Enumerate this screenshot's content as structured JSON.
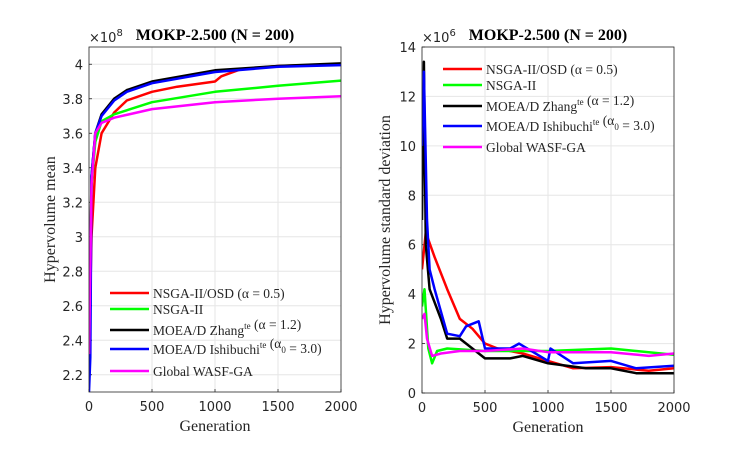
{
  "chart_data": [
    {
      "type": "line",
      "title": "MOKP-2.500 (N = 200)",
      "xlabel": "Generation",
      "ylabel": "Hypervolume mean",
      "y_multiplier": "×10^8",
      "xlim": [
        0,
        2000
      ],
      "ylim": [
        2.1,
        4.1
      ],
      "xticks": [
        0,
        500,
        1000,
        1500,
        2000
      ],
      "yticks": [
        2.2,
        2.4,
        2.6,
        2.8,
        3,
        3.2,
        3.4,
        3.6,
        3.8,
        4
      ],
      "grid": true,
      "legend_position": "bottom",
      "series": [
        {
          "name": [
            {
              "t": "NSGA-II/OSD (α = 0.5)"
            }
          ],
          "color": "#ff0000",
          "x": [
            0,
            20,
            50,
            100,
            200,
            300,
            500,
            700,
            1000,
            1050,
            1200,
            1500,
            2000
          ],
          "y": [
            2.3,
            3.0,
            3.4,
            3.6,
            3.72,
            3.79,
            3.84,
            3.87,
            3.9,
            3.93,
            3.97,
            3.99,
            4.0
          ]
        },
        {
          "name": [
            {
              "t": "NSGA-II"
            }
          ],
          "color": "#00ff00",
          "x": [
            0,
            20,
            50,
            100,
            200,
            500,
            1000,
            1500,
            2000
          ],
          "y": [
            2.3,
            3.3,
            3.55,
            3.67,
            3.71,
            3.78,
            3.84,
            3.875,
            3.905
          ]
        },
        {
          "name": [
            {
              "t": "MOEA/D Zhang"
            },
            {
              "t": "te",
              "s": "sup"
            },
            {
              "t": " (α = 1.2)"
            }
          ],
          "color": "#000000",
          "x": [
            0,
            20,
            50,
            100,
            200,
            300,
            500,
            1000,
            1500,
            2000
          ],
          "y": [
            2.3,
            3.35,
            3.6,
            3.71,
            3.8,
            3.85,
            3.9,
            3.965,
            3.99,
            4.005
          ]
        },
        {
          "name": [
            {
              "t": "MOEA/D Ishibuchi"
            },
            {
              "t": "te",
              "s": "sup"
            },
            {
              "t": " (α"
            },
            {
              "t": "0",
              "s": "sub"
            },
            {
              "t": " = 3.0)"
            }
          ],
          "color": "#0000ff",
          "x": [
            0,
            10,
            20,
            50,
            100,
            200,
            300,
            500,
            1000,
            1500,
            2000
          ],
          "y": [
            2.1,
            2.3,
            3.35,
            3.6,
            3.7,
            3.79,
            3.84,
            3.89,
            3.955,
            3.985,
            3.995
          ]
        },
        {
          "name": [
            {
              "t": "Global WASF-GA"
            }
          ],
          "color": "#ff00ff",
          "x": [
            0,
            20,
            50,
            100,
            200,
            500,
            1000,
            1500,
            2000
          ],
          "y": [
            2.32,
            3.3,
            3.6,
            3.66,
            3.69,
            3.74,
            3.78,
            3.8,
            3.815
          ]
        }
      ]
    },
    {
      "type": "line",
      "title": "MOKP-2.500 (N = 200)",
      "xlabel": "Generation",
      "ylabel": "Hypervolume standard deviation",
      "y_multiplier": "×10^6",
      "xlim": [
        0,
        2000
      ],
      "ylim": [
        0,
        14
      ],
      "xticks": [
        0,
        500,
        1000,
        1500,
        2000
      ],
      "yticks": [
        0,
        2,
        4,
        6,
        8,
        10,
        12,
        14
      ],
      "grid": true,
      "legend_position": "top",
      "series": [
        {
          "name": [
            {
              "t": "NSGA-II/OSD (α = 0.5)"
            }
          ],
          "color": "#ff0000",
          "x": [
            0,
            30,
            100,
            200,
            300,
            400,
            500,
            600,
            800,
            1000,
            1200,
            1500,
            1800,
            2000
          ],
          "y": [
            5,
            6.5,
            5.5,
            4.2,
            3,
            2.6,
            2,
            1.8,
            1.6,
            1.3,
            1.0,
            1.05,
            0.9,
            1.0
          ]
        },
        {
          "name": [
            {
              "t": "NSGA-II"
            }
          ],
          "color": "#00ff00",
          "x": [
            0,
            20,
            50,
            80,
            120,
            200,
            500,
            1000,
            1500,
            2000
          ],
          "y": [
            3.5,
            4.2,
            1.8,
            1.2,
            1.7,
            1.8,
            1.7,
            1.7,
            1.8,
            1.55
          ]
        },
        {
          "name": [
            {
              "t": "MOEA/D Zhang"
            },
            {
              "t": "te",
              "s": "sup"
            },
            {
              "t": " (α = 1.2)"
            }
          ],
          "color": "#000000",
          "x": [
            0,
            15,
            30,
            60,
            150,
            200,
            300,
            400,
            500,
            700,
            800,
            1000,
            1300,
            1500,
            1700,
            2000
          ],
          "y": [
            7,
            13.4,
            6,
            4.2,
            3,
            2.2,
            2.2,
            1.8,
            1.4,
            1.4,
            1.5,
            1.2,
            1.0,
            1.0,
            0.8,
            0.8
          ]
        },
        {
          "name": [
            {
              "t": "MOEA/D Ishibuchi"
            },
            {
              "t": "te",
              "s": "sup"
            },
            {
              "t": " (α"
            },
            {
              "t": "0",
              "s": "sub"
            },
            {
              "t": " = 3.0)"
            }
          ],
          "color": "#0000ff",
          "x": [
            0,
            15,
            40,
            60,
            100,
            200,
            300,
            350,
            450,
            500,
            700,
            770,
            1000,
            1020,
            1200,
            1500,
            1700,
            2000
          ],
          "y": [
            10,
            13,
            7,
            5,
            4.2,
            2.4,
            2.3,
            2.7,
            2.9,
            1.8,
            1.8,
            2.0,
            1.3,
            1.8,
            1.2,
            1.3,
            1.0,
            1.1
          ]
        },
        {
          "name": [
            {
              "t": "Global WASF-GA"
            }
          ],
          "color": "#ff00ff",
          "x": [
            0,
            20,
            40,
            80,
            150,
            300,
            500,
            800,
            1000,
            1500,
            1800,
            2000
          ],
          "y": [
            3,
            3.2,
            2.2,
            1.5,
            1.6,
            1.7,
            1.7,
            1.8,
            1.65,
            1.65,
            1.5,
            1.6
          ]
        }
      ]
    }
  ]
}
